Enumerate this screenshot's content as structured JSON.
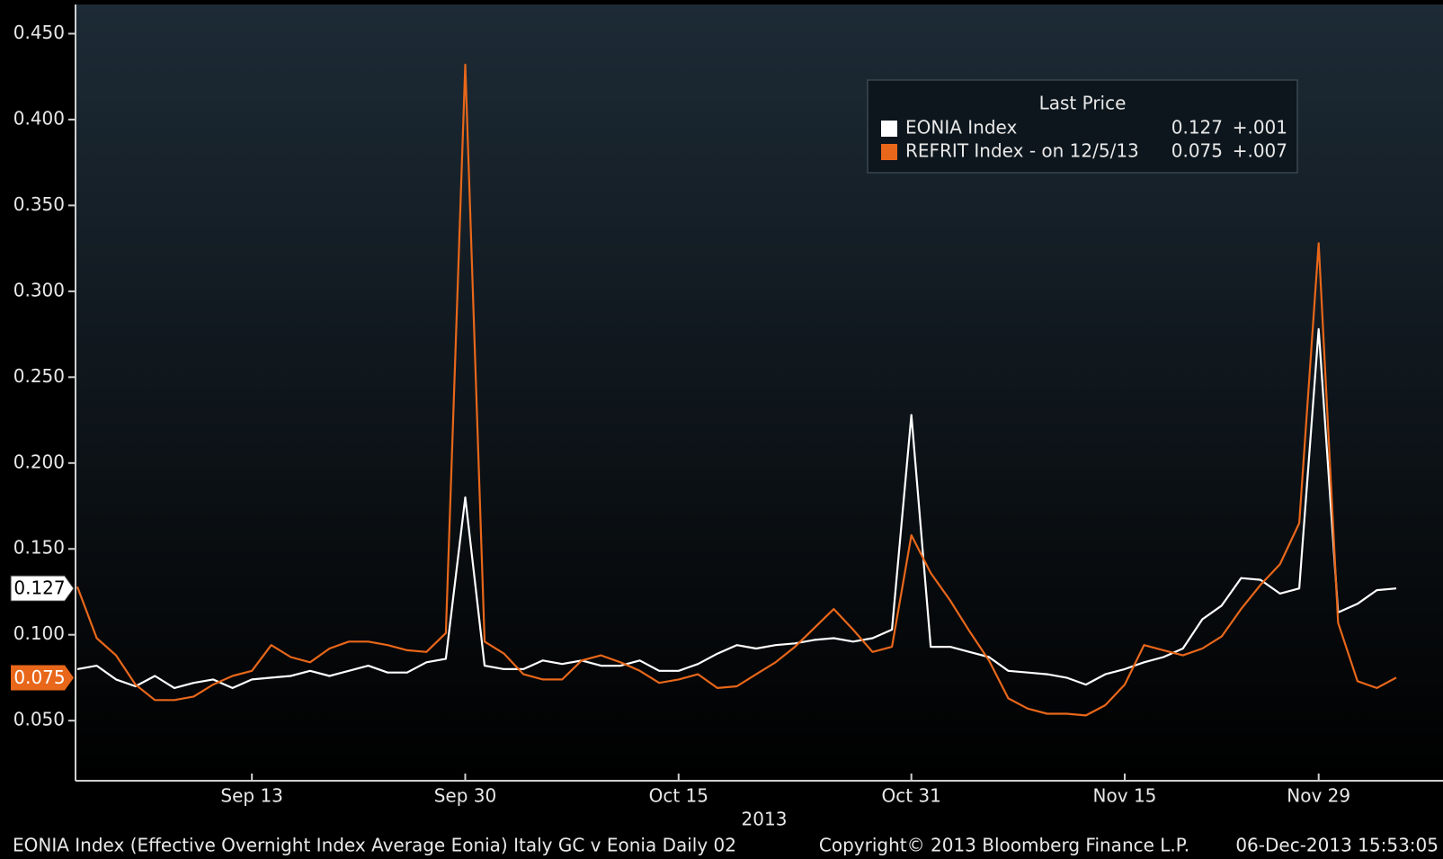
{
  "chart_data": {
    "type": "line",
    "x_label": "2013",
    "categories": [
      null,
      null,
      null,
      null,
      null,
      null,
      null,
      null,
      null,
      "Sep 13",
      null,
      null,
      null,
      null,
      null,
      null,
      null,
      null,
      null,
      null,
      "Sep 30",
      null,
      null,
      null,
      null,
      null,
      null,
      null,
      null,
      null,
      null,
      "Oct 15",
      null,
      null,
      null,
      null,
      null,
      null,
      null,
      null,
      null,
      null,
      null,
      "Oct 31",
      null,
      null,
      null,
      null,
      null,
      null,
      null,
      null,
      null,
      null,
      "Nov 15",
      null,
      null,
      null,
      null,
      null,
      null,
      null,
      null,
      null,
      "Nov 29",
      null,
      null,
      null,
      null
    ],
    "ylim": [
      0.015,
      0.467
    ],
    "yticks": [
      {
        "value": 0.05,
        "label": "0.050"
      },
      {
        "value": 0.1,
        "label": "0.100"
      },
      {
        "value": 0.15,
        "label": "0.150"
      },
      {
        "value": 0.2,
        "label": "0.200"
      },
      {
        "value": 0.25,
        "label": "0.250"
      },
      {
        "value": 0.3,
        "label": "0.300"
      },
      {
        "value": 0.35,
        "label": "0.350"
      },
      {
        "value": 0.4,
        "label": "0.400"
      },
      {
        "value": 0.45,
        "label": "0.450"
      }
    ],
    "legend": {
      "title": "Last Price",
      "position": "top-right"
    },
    "series": [
      {
        "name": "EONIA Index",
        "color": "#ffffff",
        "last": 0.127,
        "change": {
          "value": 0.001,
          "label": "+.001"
        },
        "values": [
          0.08,
          0.082,
          0.074,
          0.07,
          0.076,
          0.069,
          0.072,
          0.074,
          0.069,
          0.074,
          0.075,
          0.076,
          0.079,
          0.076,
          0.079,
          0.082,
          0.078,
          0.078,
          0.084,
          0.086,
          0.18,
          0.082,
          0.08,
          0.08,
          0.085,
          0.083,
          0.085,
          0.082,
          0.082,
          0.085,
          0.079,
          0.079,
          0.083,
          0.089,
          0.094,
          0.092,
          0.094,
          0.095,
          0.097,
          0.098,
          0.096,
          0.098,
          0.103,
          0.228,
          0.093,
          0.093,
          0.09,
          0.087,
          0.079,
          0.078,
          0.077,
          0.075,
          0.071,
          0.077,
          0.08,
          0.084,
          0.087,
          0.092,
          0.109,
          0.117,
          0.133,
          0.132,
          0.124,
          0.127,
          0.278,
          0.113,
          0.118,
          0.126,
          0.127
        ]
      },
      {
        "name": "REFRIT Index -  on 12/5/13",
        "color": "#e8671a",
        "last": 0.075,
        "change": {
          "value": 0.007,
          "label": "+.007"
        },
        "values": [
          0.128,
          0.098,
          0.088,
          0.071,
          0.062,
          0.062,
          0.064,
          0.071,
          0.076,
          0.079,
          0.094,
          0.087,
          0.084,
          0.092,
          0.096,
          0.096,
          0.094,
          0.091,
          0.09,
          0.101,
          0.432,
          0.096,
          0.089,
          0.077,
          0.074,
          0.074,
          0.085,
          0.088,
          0.084,
          0.079,
          0.072,
          0.074,
          0.077,
          0.069,
          0.07,
          0.077,
          0.084,
          0.093,
          0.104,
          0.115,
          0.103,
          0.09,
          0.093,
          0.158,
          0.136,
          0.12,
          0.102,
          0.085,
          0.063,
          0.057,
          0.054,
          0.054,
          0.053,
          0.059,
          0.071,
          0.094,
          0.091,
          0.088,
          0.092,
          0.099,
          0.115,
          0.129,
          0.141,
          0.165,
          0.328,
          0.107,
          0.073,
          0.069,
          0.075
        ]
      }
    ],
    "footer": {
      "description": "EONIA Index (Effective Overnight Index Average Eonia) Italy GC v Eonia  Daily 02",
      "copyright": "Copyright© 2013 Bloomberg Finance L.P.",
      "timestamp": "06-Dec-2013 15:53:05"
    }
  }
}
